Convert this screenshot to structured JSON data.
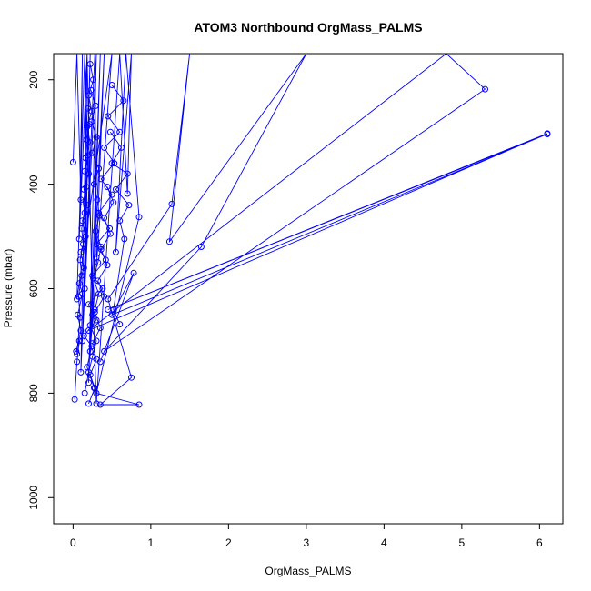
{
  "chart_data": {
    "type": "line",
    "title": "ATOM3 Northbound OrgMass_PALMS",
    "xlabel": "OrgMass_PALMS",
    "ylabel": "Pressure (mbar)",
    "xlim": [
      -0.25,
      6.3
    ],
    "ylim": [
      1050,
      150
    ],
    "y_reversed": true,
    "x_ticks": [
      0,
      1,
      2,
      3,
      4,
      5,
      6
    ],
    "x_tick_labels": [
      "0",
      "1",
      "2",
      "3",
      "4",
      "5",
      "6"
    ],
    "y_ticks": [
      200,
      400,
      600,
      800,
      1000
    ],
    "y_tick_labels": [
      "200",
      "400",
      "600",
      "800",
      "1000"
    ],
    "grid": false,
    "legend": "none",
    "series_color": "#0000ff",
    "series": [
      {
        "points": [
          [
            0.0,
            358
          ],
          [
            0.05,
            150
          ],
          [
            0.1,
            430
          ],
          [
            0.12,
            150
          ],
          [
            0.08,
            505
          ],
          [
            0.18,
            150
          ],
          [
            0.15,
            600
          ],
          [
            0.22,
            150
          ],
          [
            0.12,
            700
          ],
          [
            0.3,
            150
          ],
          [
            0.2,
            780
          ],
          [
            0.35,
            150
          ],
          [
            0.25,
            650
          ],
          [
            0.18,
            150
          ],
          [
            0.1,
            760
          ],
          [
            0.28,
            150
          ],
          [
            0.3,
            540
          ],
          [
            0.4,
            150
          ],
          [
            0.22,
            720
          ],
          [
            0.5,
            150
          ],
          [
            0.05,
            620
          ],
          [
            0.15,
            150
          ],
          [
            0.3,
            820
          ],
          [
            0.6,
            150
          ],
          [
            0.7,
            418
          ],
          [
            0.75,
            150
          ],
          [
            0.55,
            530
          ],
          [
            0.68,
            150
          ],
          [
            0.85,
            463
          ],
          [
            0.3,
            800
          ],
          [
            0.85,
            822
          ],
          [
            0.35,
            822
          ],
          [
            0.75,
            770
          ],
          [
            0.45,
            620
          ],
          [
            1.27,
            438
          ],
          [
            1.5,
            150
          ],
          [
            1.24,
            510
          ],
          [
            3.0,
            150
          ],
          [
            1.65,
            520
          ],
          [
            0.4,
            720
          ],
          [
            5.3,
            218
          ],
          [
            4.8,
            150
          ],
          [
            0.2,
            680
          ],
          [
            6.1,
            303
          ],
          [
            0.45,
            640
          ],
          [
            6.1,
            304
          ],
          [
            0.5,
            650
          ],
          [
            0.78,
            570
          ],
          [
            0.35,
            740
          ]
        ]
      },
      {
        "points": [
          [
            0.02,
            812
          ],
          [
            0.05,
            740
          ],
          [
            0.08,
            700
          ],
          [
            0.04,
            720
          ],
          [
            0.1,
            680
          ],
          [
            0.06,
            650
          ],
          [
            0.12,
            610
          ],
          [
            0.08,
            590
          ],
          [
            0.14,
            560
          ],
          [
            0.1,
            530
          ],
          [
            0.16,
            500
          ],
          [
            0.12,
            470
          ],
          [
            0.18,
            440
          ],
          [
            0.14,
            410
          ],
          [
            0.2,
            380
          ],
          [
            0.16,
            350
          ],
          [
            0.22,
            320
          ],
          [
            0.18,
            290
          ],
          [
            0.24,
            260
          ],
          [
            0.2,
            230
          ],
          [
            0.26,
            200
          ],
          [
            0.22,
            170
          ]
        ]
      },
      {
        "points": [
          [
            0.15,
            800
          ],
          [
            0.2,
            760
          ],
          [
            0.25,
            730
          ],
          [
            0.3,
            700
          ],
          [
            0.22,
            670
          ],
          [
            0.28,
            640
          ],
          [
            0.33,
            610
          ],
          [
            0.26,
            580
          ],
          [
            0.32,
            550
          ],
          [
            0.36,
            520
          ],
          [
            0.29,
            490
          ],
          [
            0.34,
            460
          ],
          [
            0.31,
            430
          ],
          [
            0.27,
            400
          ],
          [
            0.33,
            370
          ],
          [
            0.25,
            340
          ],
          [
            0.3,
            310
          ],
          [
            0.24,
            280
          ],
          [
            0.29,
            250
          ],
          [
            0.23,
            220
          ]
        ]
      },
      {
        "points": [
          [
            0.27,
            790
          ],
          [
            0.18,
            750
          ],
          [
            0.24,
            710
          ],
          [
            0.14,
            690
          ],
          [
            0.3,
            660
          ],
          [
            0.2,
            630
          ],
          [
            0.38,
            600
          ],
          [
            0.25,
            575
          ],
          [
            0.42,
            545
          ],
          [
            0.3,
            515
          ],
          [
            0.47,
            485
          ],
          [
            0.33,
            455
          ],
          [
            0.5,
            420
          ],
          [
            0.36,
            390
          ],
          [
            0.53,
            360
          ],
          [
            0.4,
            330
          ],
          [
            0.6,
            300
          ],
          [
            0.45,
            270
          ],
          [
            0.65,
            240
          ],
          [
            0.5,
            210
          ]
        ]
      },
      {
        "points": [
          [
            0.05,
            725
          ],
          [
            0.09,
            655
          ],
          [
            0.07,
            615
          ],
          [
            0.11,
            575
          ],
          [
            0.09,
            545
          ],
          [
            0.13,
            515
          ],
          [
            0.11,
            485
          ],
          [
            0.15,
            455
          ],
          [
            0.13,
            435
          ],
          [
            0.17,
            405
          ],
          [
            0.15,
            375
          ],
          [
            0.19,
            345
          ],
          [
            0.17,
            315
          ],
          [
            0.21,
            285
          ],
          [
            0.19,
            255
          ]
        ]
      },
      {
        "points": [
          [
            0.2,
            820
          ],
          [
            0.28,
            790
          ],
          [
            0.22,
            765
          ],
          [
            0.3,
            735
          ],
          [
            0.25,
            705
          ],
          [
            0.35,
            675
          ],
          [
            0.28,
            645
          ],
          [
            0.4,
            615
          ],
          [
            0.32,
            585
          ],
          [
            0.44,
            555
          ],
          [
            0.36,
            525
          ],
          [
            0.48,
            495
          ],
          [
            0.4,
            465
          ],
          [
            0.52,
            435
          ],
          [
            0.44,
            405
          ]
        ]
      },
      {
        "points": [
          [
            0.6,
            668
          ],
          [
            0.52,
            640
          ],
          [
            0.66,
            505
          ],
          [
            0.6,
            470
          ],
          [
            0.72,
            440
          ],
          [
            0.55,
            410
          ],
          [
            0.7,
            380
          ],
          [
            0.5,
            360
          ],
          [
            0.62,
            330
          ],
          [
            0.48,
            300
          ]
        ]
      }
    ]
  }
}
